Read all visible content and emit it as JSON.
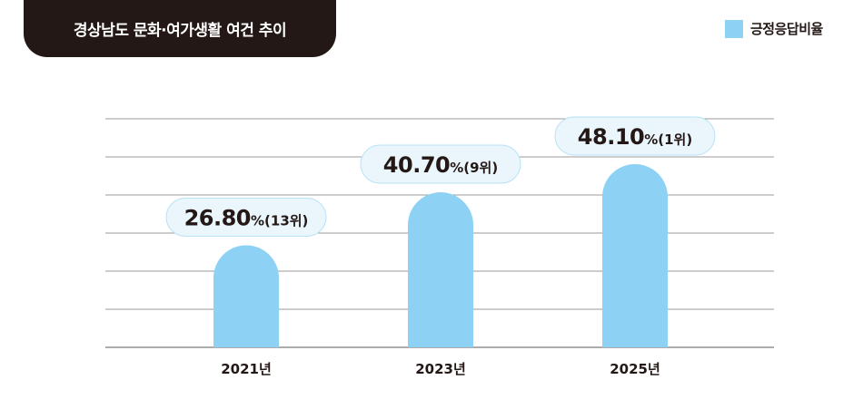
{
  "title": "경상남도 문화·여가생활 여건 추이",
  "legend": {
    "label": "긍정응답비율",
    "color": "#8dd2f5"
  },
  "colors": {
    "bar": "#8dd2f5",
    "bubble_fill": "#eaf6fc",
    "bubble_stroke": "#b7e2f6",
    "grid": "#7a7a7a",
    "title_bg": "#231815"
  },
  "chart_data": {
    "type": "bar",
    "categories": [
      "2021년",
      "2023년",
      "2025년"
    ],
    "series": [
      {
        "name": "긍정응답비율",
        "values": [
          26.8,
          40.7,
          48.1
        ]
      }
    ],
    "value_labels": [
      "26.80",
      "40.70",
      "48.10"
    ],
    "value_unit": "%",
    "rank_labels": [
      "(13위)",
      "(9위)",
      "(1위)"
    ],
    "title": "경상남도 문화·여가생활 여건 추이",
    "xlabel": "",
    "ylabel": "",
    "ylim": [
      0,
      60
    ],
    "grid": true,
    "legend_position": "top-right"
  }
}
